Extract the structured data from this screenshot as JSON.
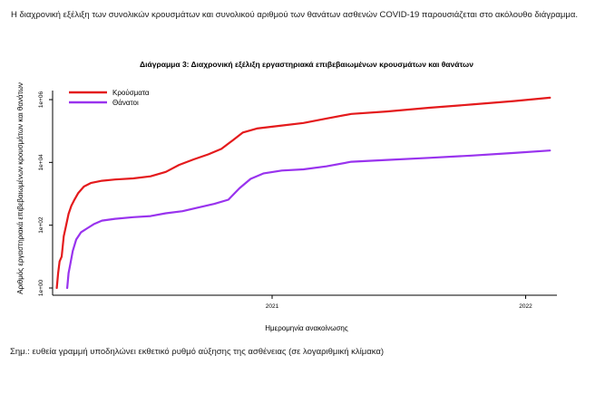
{
  "intro_text": "Η διαχρονική εξέλιξη των συνολικών κρουσμάτων και συνολικού αριθμού των θανάτων ασθενών COVID-19 παρουσιάζεται στο ακόλουθο διάγραμμα.",
  "caption": "Σημ.: ευθεία γραμμή υποδηλώνει εκθετικό ρυθμό αύξησης της ασθένειας (σε λογαριθμική κλίμακα)",
  "colors": {
    "cases": "#e41a1c",
    "deaths": "#9933ee"
  },
  "chart_data": {
    "type": "line",
    "title": "Διάγραμμα 3: Διαχρονική εξέλιξη εργαστηριακά επιβεβαιωμένων κρουσμάτων και θανάτων",
    "xlabel": "Ημερομηνία ανακοίνωσης",
    "ylabel": "Αριθμός εργαστηριακά επιβεβαιωμένων κρουσμάτων και θανάτων",
    "y_scale": "log10",
    "ylim": [
      1,
      1000000
    ],
    "xlim": [
      "2020-02-20",
      "2022-02-15"
    ],
    "yticks": [
      {
        "value": 1,
        "label": "1e+00"
      },
      {
        "value": 100,
        "label": "1e+02"
      },
      {
        "value": 10000,
        "label": "1e+04"
      },
      {
        "value": 1000000,
        "label": "1e+06"
      }
    ],
    "xticks": [
      {
        "value": "2021-01-01",
        "label": "2021"
      },
      {
        "value": "2022-01-01",
        "label": "2022"
      }
    ],
    "legend_position": "top-left",
    "series": [
      {
        "name": "Κρούσματα",
        "color": "#e41a1c",
        "points": [
          [
            "2020-02-26",
            1
          ],
          [
            "2020-02-28",
            3
          ],
          [
            "2020-03-01",
            7
          ],
          [
            "2020-03-04",
            10
          ],
          [
            "2020-03-07",
            45
          ],
          [
            "2020-03-10",
            90
          ],
          [
            "2020-03-14",
            230
          ],
          [
            "2020-03-18",
            420
          ],
          [
            "2020-03-22",
            620
          ],
          [
            "2020-03-28",
            1060
          ],
          [
            "2020-04-05",
            1700
          ],
          [
            "2020-04-15",
            2200
          ],
          [
            "2020-05-01",
            2600
          ],
          [
            "2020-05-20",
            2850
          ],
          [
            "2020-06-15",
            3100
          ],
          [
            "2020-07-10",
            3600
          ],
          [
            "2020-08-01",
            5000
          ],
          [
            "2020-08-20",
            8300
          ],
          [
            "2020-09-10",
            12500
          ],
          [
            "2020-10-01",
            18000
          ],
          [
            "2020-10-20",
            27000
          ],
          [
            "2020-11-05",
            50000
          ],
          [
            "2020-11-20",
            90000
          ],
          [
            "2020-12-10",
            120000
          ],
          [
            "2021-01-15",
            150000
          ],
          [
            "2021-02-15",
            180000
          ],
          [
            "2021-03-20",
            250000
          ],
          [
            "2021-04-25",
            350000
          ],
          [
            "2021-06-15",
            420000
          ],
          [
            "2021-08-15",
            550000
          ],
          [
            "2021-10-15",
            700000
          ],
          [
            "2021-12-15",
            900000
          ],
          [
            "2022-02-05",
            1150000
          ]
        ]
      },
      {
        "name": "Θάνατοι",
        "color": "#9933ee",
        "points": [
          [
            "2020-03-12",
            1
          ],
          [
            "2020-03-14",
            3
          ],
          [
            "2020-03-16",
            5
          ],
          [
            "2020-03-20",
            15
          ],
          [
            "2020-03-25",
            35
          ],
          [
            "2020-04-01",
            60
          ],
          [
            "2020-04-10",
            80
          ],
          [
            "2020-04-20",
            110
          ],
          [
            "2020-05-01",
            140
          ],
          [
            "2020-05-20",
            160
          ],
          [
            "2020-06-15",
            180
          ],
          [
            "2020-07-10",
            195
          ],
          [
            "2020-08-01",
            240
          ],
          [
            "2020-08-25",
            280
          ],
          [
            "2020-09-15",
            360
          ],
          [
            "2020-10-10",
            480
          ],
          [
            "2020-10-30",
            650
          ],
          [
            "2020-11-15",
            1500
          ],
          [
            "2020-12-01",
            3000
          ],
          [
            "2020-12-20",
            4500
          ],
          [
            "2021-01-15",
            5500
          ],
          [
            "2021-02-15",
            6000
          ],
          [
            "2021-03-20",
            7500
          ],
          [
            "2021-04-25",
            10500
          ],
          [
            "2021-06-15",
            12000
          ],
          [
            "2021-08-15",
            14000
          ],
          [
            "2021-10-15",
            16500
          ],
          [
            "2021-12-15",
            20000
          ],
          [
            "2022-02-05",
            24000
          ]
        ]
      }
    ]
  }
}
